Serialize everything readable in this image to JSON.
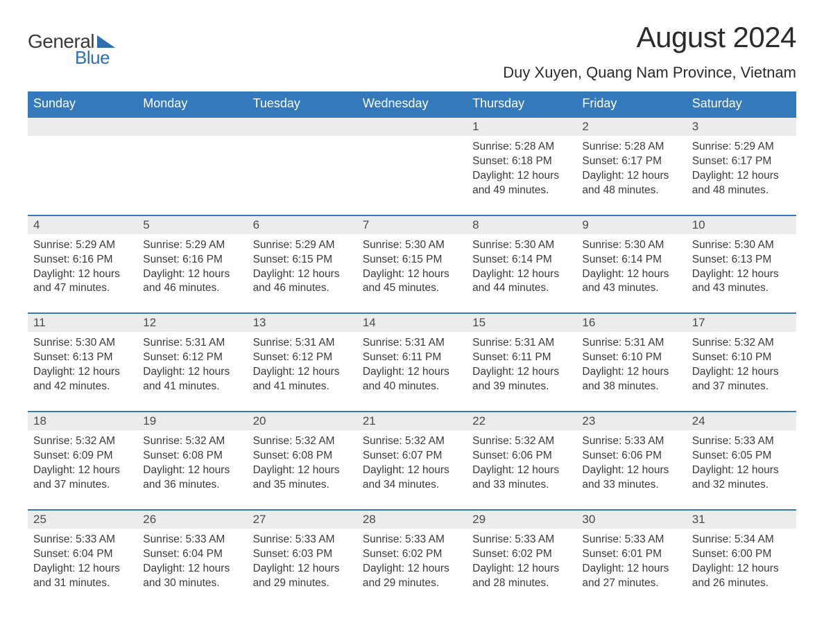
{
  "logo": {
    "text_general": "General",
    "text_blue": "Blue",
    "triangle_color": "#2f6fb0"
  },
  "title": "August 2024",
  "subtitle": "Duy Xuyen, Quang Nam Province, Vietnam",
  "header_bg": "#3379bc",
  "row_sep_color": "#3379bc",
  "daynum_bg": "#ececec",
  "dow": [
    "Sunday",
    "Monday",
    "Tuesday",
    "Wednesday",
    "Thursday",
    "Friday",
    "Saturday"
  ],
  "weeks": [
    [
      null,
      null,
      null,
      null,
      {
        "day": "1",
        "sunrise": "Sunrise: 5:28 AM",
        "sunset": "Sunset: 6:18 PM",
        "daylight": "Daylight: 12 hours and 49 minutes."
      },
      {
        "day": "2",
        "sunrise": "Sunrise: 5:28 AM",
        "sunset": "Sunset: 6:17 PM",
        "daylight": "Daylight: 12 hours and 48 minutes."
      },
      {
        "day": "3",
        "sunrise": "Sunrise: 5:29 AM",
        "sunset": "Sunset: 6:17 PM",
        "daylight": "Daylight: 12 hours and 48 minutes."
      }
    ],
    [
      {
        "day": "4",
        "sunrise": "Sunrise: 5:29 AM",
        "sunset": "Sunset: 6:16 PM",
        "daylight": "Daylight: 12 hours and 47 minutes."
      },
      {
        "day": "5",
        "sunrise": "Sunrise: 5:29 AM",
        "sunset": "Sunset: 6:16 PM",
        "daylight": "Daylight: 12 hours and 46 minutes."
      },
      {
        "day": "6",
        "sunrise": "Sunrise: 5:29 AM",
        "sunset": "Sunset: 6:15 PM",
        "daylight": "Daylight: 12 hours and 46 minutes."
      },
      {
        "day": "7",
        "sunrise": "Sunrise: 5:30 AM",
        "sunset": "Sunset: 6:15 PM",
        "daylight": "Daylight: 12 hours and 45 minutes."
      },
      {
        "day": "8",
        "sunrise": "Sunrise: 5:30 AM",
        "sunset": "Sunset: 6:14 PM",
        "daylight": "Daylight: 12 hours and 44 minutes."
      },
      {
        "day": "9",
        "sunrise": "Sunrise: 5:30 AM",
        "sunset": "Sunset: 6:14 PM",
        "daylight": "Daylight: 12 hours and 43 minutes."
      },
      {
        "day": "10",
        "sunrise": "Sunrise: 5:30 AM",
        "sunset": "Sunset: 6:13 PM",
        "daylight": "Daylight: 12 hours and 43 minutes."
      }
    ],
    [
      {
        "day": "11",
        "sunrise": "Sunrise: 5:30 AM",
        "sunset": "Sunset: 6:13 PM",
        "daylight": "Daylight: 12 hours and 42 minutes."
      },
      {
        "day": "12",
        "sunrise": "Sunrise: 5:31 AM",
        "sunset": "Sunset: 6:12 PM",
        "daylight": "Daylight: 12 hours and 41 minutes."
      },
      {
        "day": "13",
        "sunrise": "Sunrise: 5:31 AM",
        "sunset": "Sunset: 6:12 PM",
        "daylight": "Daylight: 12 hours and 41 minutes."
      },
      {
        "day": "14",
        "sunrise": "Sunrise: 5:31 AM",
        "sunset": "Sunset: 6:11 PM",
        "daylight": "Daylight: 12 hours and 40 minutes."
      },
      {
        "day": "15",
        "sunrise": "Sunrise: 5:31 AM",
        "sunset": "Sunset: 6:11 PM",
        "daylight": "Daylight: 12 hours and 39 minutes."
      },
      {
        "day": "16",
        "sunrise": "Sunrise: 5:31 AM",
        "sunset": "Sunset: 6:10 PM",
        "daylight": "Daylight: 12 hours and 38 minutes."
      },
      {
        "day": "17",
        "sunrise": "Sunrise: 5:32 AM",
        "sunset": "Sunset: 6:10 PM",
        "daylight": "Daylight: 12 hours and 37 minutes."
      }
    ],
    [
      {
        "day": "18",
        "sunrise": "Sunrise: 5:32 AM",
        "sunset": "Sunset: 6:09 PM",
        "daylight": "Daylight: 12 hours and 37 minutes."
      },
      {
        "day": "19",
        "sunrise": "Sunrise: 5:32 AM",
        "sunset": "Sunset: 6:08 PM",
        "daylight": "Daylight: 12 hours and 36 minutes."
      },
      {
        "day": "20",
        "sunrise": "Sunrise: 5:32 AM",
        "sunset": "Sunset: 6:08 PM",
        "daylight": "Daylight: 12 hours and 35 minutes."
      },
      {
        "day": "21",
        "sunrise": "Sunrise: 5:32 AM",
        "sunset": "Sunset: 6:07 PM",
        "daylight": "Daylight: 12 hours and 34 minutes."
      },
      {
        "day": "22",
        "sunrise": "Sunrise: 5:32 AM",
        "sunset": "Sunset: 6:06 PM",
        "daylight": "Daylight: 12 hours and 33 minutes."
      },
      {
        "day": "23",
        "sunrise": "Sunrise: 5:33 AM",
        "sunset": "Sunset: 6:06 PM",
        "daylight": "Daylight: 12 hours and 33 minutes."
      },
      {
        "day": "24",
        "sunrise": "Sunrise: 5:33 AM",
        "sunset": "Sunset: 6:05 PM",
        "daylight": "Daylight: 12 hours and 32 minutes."
      }
    ],
    [
      {
        "day": "25",
        "sunrise": "Sunrise: 5:33 AM",
        "sunset": "Sunset: 6:04 PM",
        "daylight": "Daylight: 12 hours and 31 minutes."
      },
      {
        "day": "26",
        "sunrise": "Sunrise: 5:33 AM",
        "sunset": "Sunset: 6:04 PM",
        "daylight": "Daylight: 12 hours and 30 minutes."
      },
      {
        "day": "27",
        "sunrise": "Sunrise: 5:33 AM",
        "sunset": "Sunset: 6:03 PM",
        "daylight": "Daylight: 12 hours and 29 minutes."
      },
      {
        "day": "28",
        "sunrise": "Sunrise: 5:33 AM",
        "sunset": "Sunset: 6:02 PM",
        "daylight": "Daylight: 12 hours and 29 minutes."
      },
      {
        "day": "29",
        "sunrise": "Sunrise: 5:33 AM",
        "sunset": "Sunset: 6:02 PM",
        "daylight": "Daylight: 12 hours and 28 minutes."
      },
      {
        "day": "30",
        "sunrise": "Sunrise: 5:33 AM",
        "sunset": "Sunset: 6:01 PM",
        "daylight": "Daylight: 12 hours and 27 minutes."
      },
      {
        "day": "31",
        "sunrise": "Sunrise: 5:34 AM",
        "sunset": "Sunset: 6:00 PM",
        "daylight": "Daylight: 12 hours and 26 minutes."
      }
    ]
  ]
}
